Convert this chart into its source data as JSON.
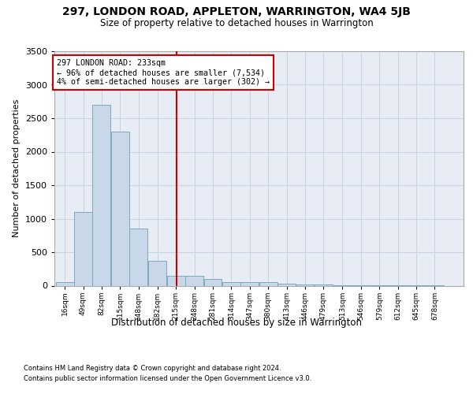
{
  "title": "297, LONDON ROAD, APPLETON, WARRINGTON, WA4 5JB",
  "subtitle": "Size of property relative to detached houses in Warrington",
  "xlabel": "Distribution of detached houses by size in Warrington",
  "ylabel": "Number of detached properties",
  "bin_labels": [
    "16sqm",
    "49sqm",
    "82sqm",
    "115sqm",
    "148sqm",
    "182sqm",
    "215sqm",
    "248sqm",
    "281sqm",
    "314sqm",
    "347sqm",
    "380sqm",
    "413sqm",
    "446sqm",
    "479sqm",
    "513sqm",
    "546sqm",
    "579sqm",
    "612sqm",
    "645sqm",
    "678sqm"
  ],
  "bin_edges": [
    16,
    49,
    82,
    115,
    148,
    182,
    215,
    248,
    281,
    314,
    347,
    380,
    413,
    446,
    479,
    513,
    546,
    579,
    612,
    645,
    678,
    711
  ],
  "bar_heights": [
    50,
    1100,
    2700,
    2300,
    850,
    375,
    150,
    150,
    100,
    50,
    50,
    50,
    30,
    20,
    15,
    10,
    5,
    5,
    3,
    2,
    2
  ],
  "bar_color": "#c8d8e8",
  "bar_edge_color": "#7aaabf",
  "grid_color": "#c8d4e4",
  "background_color": "#e8edf5",
  "red_line_x": 233,
  "annotation_title": "297 LONDON ROAD: 233sqm",
  "annotation_line1": "← 96% of detached houses are smaller (7,534)",
  "annotation_line2": "4% of semi-detached houses are larger (302) →",
  "annotation_box_color": "#ffffff",
  "annotation_box_edge": "#cc0000",
  "red_line_color": "#cc0000",
  "ylim": [
    0,
    3500
  ],
  "yticks": [
    0,
    500,
    1000,
    1500,
    2000,
    2500,
    3000,
    3500
  ],
  "footnote1": "Contains HM Land Registry data © Crown copyright and database right 2024.",
  "footnote2": "Contains public sector information licensed under the Open Government Licence v3.0."
}
